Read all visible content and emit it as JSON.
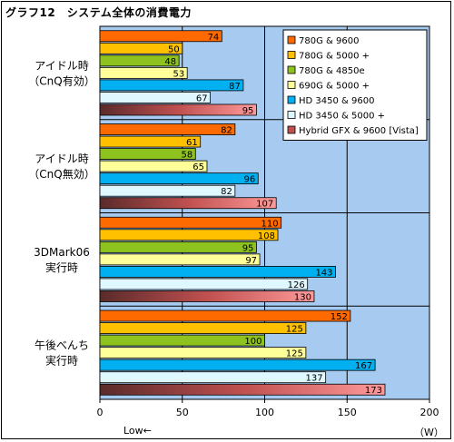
{
  "chart_data": {
    "type": "bar",
    "orientation": "horizontal",
    "title": "グラフ12　システム全体の消費電力",
    "categories": [
      "アイドル時\n（CnQ有効）",
      "アイドル時\n（CnQ無効）",
      "3DMark06\n実行時",
      "午後べんち\n実行時"
    ],
    "series": [
      {
        "name": "780G & 9600",
        "color": "#ff6a00",
        "values": [
          74,
          82,
          110,
          152
        ]
      },
      {
        "name": "780G & 5000 +",
        "color": "#ffc000",
        "values": [
          50,
          61,
          108,
          125
        ]
      },
      {
        "name": "780G & 4850e",
        "color": "#8dc21f",
        "values": [
          48,
          58,
          95,
          100
        ]
      },
      {
        "name": "690G & 5000 +",
        "color": "#ffff99",
        "values": [
          53,
          65,
          97,
          125
        ]
      },
      {
        "name": "HD 3450 & 9600",
        "color": "#00b0f0",
        "values": [
          87,
          96,
          143,
          167
        ]
      },
      {
        "name": "HD 3450 & 5000 +",
        "color": "#dff7ff",
        "values": [
          67,
          82,
          126,
          137
        ]
      },
      {
        "name": "Hybrid GFX & 9600 [Vista]",
        "color": "#c0504d",
        "gradient": true,
        "values": [
          95,
          107,
          130,
          173
        ]
      }
    ],
    "xlim": [
      0,
      200
    ],
    "xticks": [
      "0",
      "50",
      "100",
      "150",
      "200"
    ],
    "xlabel_note": "Low←",
    "unit": "（W）",
    "grid": true,
    "legend": "top-right"
  }
}
